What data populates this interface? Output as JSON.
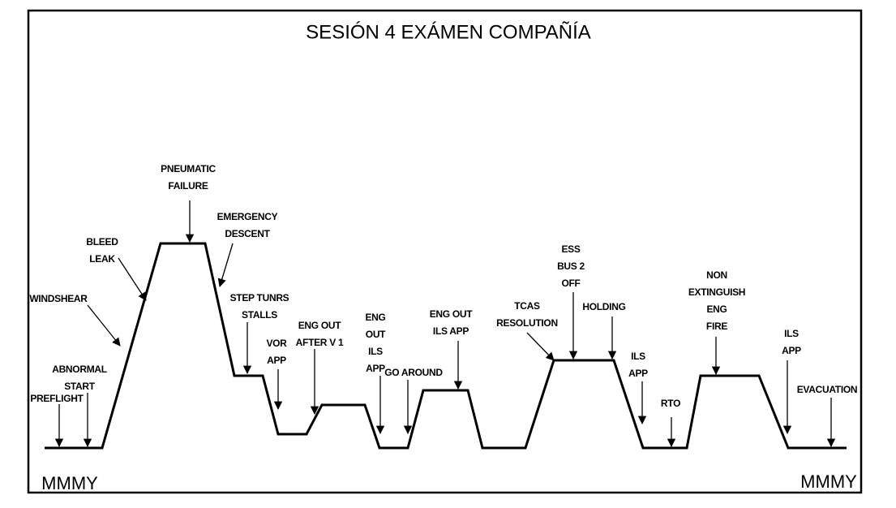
{
  "title": "SESIÓN 4 EXÁMEN COMPAÑÍA",
  "labels": [
    {
      "lines": [
        "PREFLIGHT"
      ]
    },
    {
      "lines": [
        "ABNORMAL",
        "START"
      ]
    },
    {
      "lines": [
        "WINDSHEAR"
      ]
    },
    {
      "lines": [
        "BLEED",
        "LEAK"
      ]
    },
    {
      "lines": [
        "PNEUMATIC",
        "FAILURE"
      ]
    },
    {
      "lines": [
        "EMERGENCY",
        "DESCENT"
      ]
    },
    {
      "lines": [
        "STEP TUNRS",
        "STALLS"
      ]
    },
    {
      "lines": [
        "VOR",
        "APP"
      ]
    },
    {
      "lines": [
        "ENG OUT",
        "AFTER V 1"
      ]
    },
    {
      "lines": [
        "ENG",
        "OUT",
        "ILS",
        "APP"
      ]
    },
    {
      "lines": [
        "GO AROUND"
      ]
    },
    {
      "lines": [
        "ENG OUT",
        "ILS APP"
      ]
    },
    {
      "lines": [
        "TCAS",
        "RESOLUTION"
      ]
    },
    {
      "lines": [
        "ESS",
        "BUS 2",
        "OFF"
      ]
    },
    {
      "lines": [
        "HOLDING"
      ]
    },
    {
      "lines": [
        "ILS",
        "APP"
      ]
    },
    {
      "lines": [
        "RTO"
      ]
    },
    {
      "lines": [
        "NON",
        "EXTINGUISH",
        "ENG",
        "FIRE"
      ]
    },
    {
      "lines": [
        "ILS",
        "APP"
      ]
    },
    {
      "lines": [
        "EVACUATION"
      ]
    }
  ],
  "corner_labels": [
    "MMMY",
    "MMMY"
  ]
}
